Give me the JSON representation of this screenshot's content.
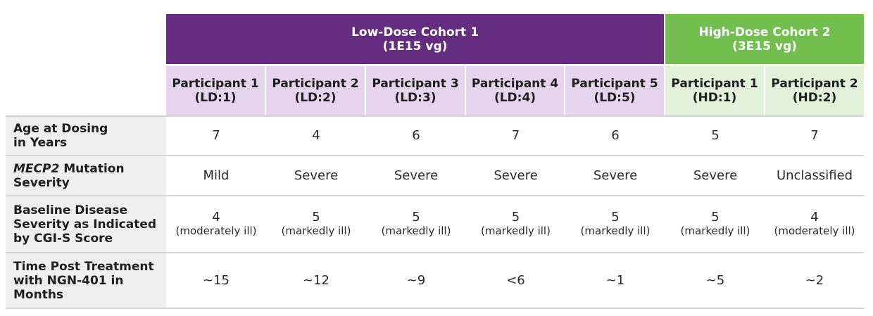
{
  "colors": {
    "low_dose": "#652d7f",
    "low_dose_light": "#e6d4ef",
    "high_dose": "#72bf4f",
    "high_dose_light": "#e4f1da",
    "row_label_bg": "#efefef"
  },
  "cohorts": [
    {
      "title": "Low-Dose Cohort 1",
      "dose": "(1E15 vg)"
    },
    {
      "title": "High-Dose Cohort 2",
      "dose": "(3E15 vg)"
    }
  ],
  "participants": [
    {
      "name": "Participant 1",
      "id": "(LD:1)"
    },
    {
      "name": "Participant 2",
      "id": "(LD:2)"
    },
    {
      "name": "Participant 3",
      "id": "(LD:3)"
    },
    {
      "name": "Participant 4",
      "id": "(LD:4)"
    },
    {
      "name": "Participant 5",
      "id": "(LD:5)"
    },
    {
      "name": "Participant 1",
      "id": "(HD:1)"
    },
    {
      "name": "Participant 2",
      "id": "(HD:2)"
    }
  ],
  "rows": [
    {
      "label": [
        "Age at Dosing",
        "in Years"
      ],
      "values": [
        "7",
        "4",
        "6",
        "7",
        "6",
        "5",
        "7"
      ]
    },
    {
      "label": [
        "MECP2",
        " Mutation",
        "Severity"
      ],
      "values": [
        "Mild",
        "Severe",
        "Severe",
        "Severe",
        "Severe",
        "Severe",
        "Unclassified"
      ]
    },
    {
      "label": [
        "Baseline Disease",
        "Severity as Indicated",
        "by CGI-S Score"
      ],
      "values": [
        "4",
        "5",
        "5",
        "5",
        "5",
        "5",
        "4"
      ],
      "notes": [
        "(moderately ill)",
        "(markedly ill)",
        "(markedly ill)",
        "(markedly ill)",
        "(markedly ill)",
        "(markedly ill)",
        "(moderately ill)"
      ]
    },
    {
      "label": [
        "Time Post Treatment",
        "with NGN-401 in",
        "Months"
      ],
      "values": [
        "~15",
        "~12",
        "~9",
        "<6",
        "~1",
        "~5",
        "~2"
      ]
    }
  ]
}
